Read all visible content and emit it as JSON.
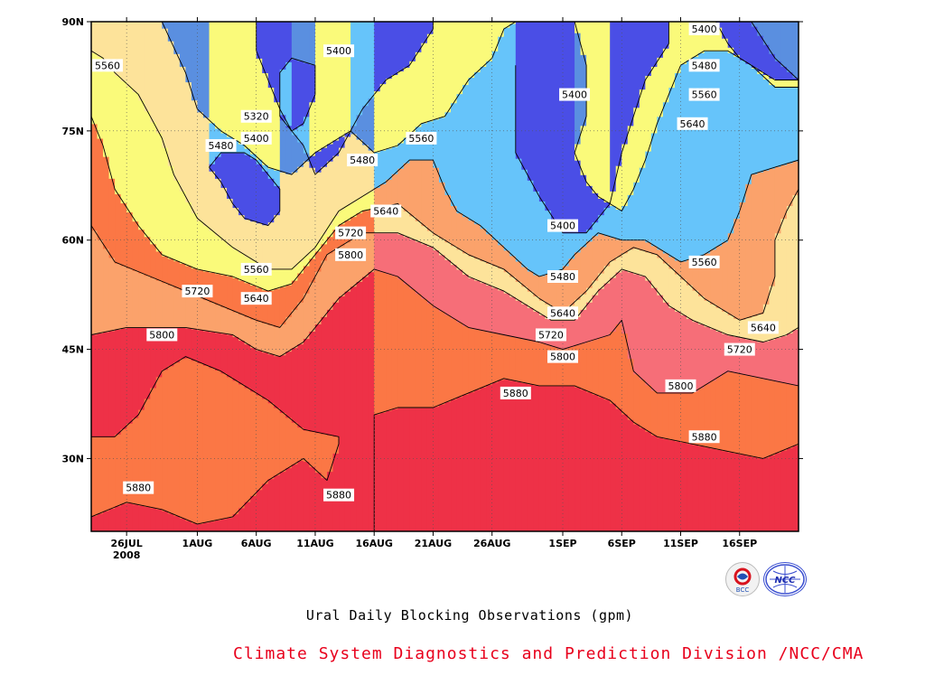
{
  "chart_data": {
    "type": "heatmap",
    "subtitle": "Ural Daily Blocking Observations (gpm)",
    "footer": "Climate System Diagnostics and Prediction Division /NCC/CMA",
    "x_ticks": [
      {
        "label": "26JUL",
        "sub": "2008",
        "day": 0
      },
      {
        "label": "1AUG",
        "day": 6
      },
      {
        "label": "6AUG",
        "day": 11
      },
      {
        "label": "11AUG",
        "day": 16
      },
      {
        "label": "16AUG",
        "day": 21
      },
      {
        "label": "21AUG",
        "day": 26
      },
      {
        "label": "26AUG",
        "day": 31
      },
      {
        "label": "1SEP",
        "day": 37
      },
      {
        "label": "6SEP",
        "day": 42
      },
      {
        "label": "11SEP",
        "day": 47
      },
      {
        "label": "16SEP",
        "day": 52
      }
    ],
    "y_ticks": [
      {
        "label": "30N",
        "lat": 30
      },
      {
        "label": "45N",
        "lat": 45
      },
      {
        "label": "60N",
        "lat": 60
      },
      {
        "label": "75N",
        "lat": 75
      },
      {
        "label": "90N",
        "lat": 90
      }
    ],
    "xlim": [
      -3,
      57
    ],
    "ylim": [
      20,
      90
    ],
    "contour_levels": [
      5320,
      5400,
      5480,
      5560,
      5640,
      5720,
      5800,
      5880
    ],
    "level_colors": [
      {
        "min": 0,
        "max": 5320,
        "color": "#4a4ee6"
      },
      {
        "min": 5320,
        "max": 5400,
        "color": "#5a8fe0"
      },
      {
        "min": 5400,
        "max": 5480,
        "color": "#66c4fa"
      },
      {
        "min": 5480,
        "max": 5560,
        "color": "#fafa7a"
      },
      {
        "min": 5560,
        "max": 5640,
        "color": "#fde39a"
      },
      {
        "min": 5640,
        "max": 5720,
        "color": "#fba26b"
      },
      {
        "min": 5720,
        "max": 5800,
        "color": "#fb7745"
      },
      {
        "min": 5800,
        "max": 5880,
        "color": "#f66e78"
      },
      {
        "min": 5880,
        "max": 9999,
        "color": "#ee3147"
      }
    ],
    "boundaries": [
      {
        "level": 5880,
        "points": [
          [
            -3,
            33
          ],
          [
            -1,
            33
          ],
          [
            1,
            36
          ],
          [
            3,
            42
          ],
          [
            5,
            44
          ],
          [
            8,
            42
          ],
          [
            12,
            38
          ],
          [
            15,
            34
          ],
          [
            18,
            33
          ],
          [
            18,
            32
          ],
          [
            17,
            27
          ],
          [
            15,
            30
          ],
          [
            12,
            27
          ],
          [
            9,
            22
          ],
          [
            6,
            21
          ],
          [
            3,
            23
          ],
          [
            0,
            24
          ],
          [
            -3,
            22
          ],
          null,
          [
            21,
            20
          ],
          [
            21,
            36
          ],
          [
            23,
            37
          ],
          [
            26,
            37
          ],
          [
            29,
            39
          ],
          [
            32,
            41
          ],
          [
            35,
            40
          ],
          [
            38,
            40
          ],
          [
            41,
            38
          ],
          [
            43,
            35
          ],
          [
            45,
            33
          ],
          [
            48,
            32
          ],
          [
            51,
            31
          ],
          [
            54,
            30
          ],
          [
            57,
            32
          ],
          [
            57,
            20
          ]
        ]
      },
      {
        "level": 5800,
        "points": [
          [
            -3,
            47
          ],
          [
            0,
            48
          ],
          [
            5,
            48
          ],
          [
            9,
            47
          ],
          [
            11,
            45
          ],
          [
            13,
            44
          ],
          [
            15,
            46
          ],
          [
            18,
            52
          ],
          [
            21,
            56
          ],
          [
            23,
            55
          ],
          [
            26,
            51
          ],
          [
            29,
            48
          ],
          [
            32,
            47
          ],
          [
            35,
            46
          ],
          [
            37,
            45
          ],
          [
            39,
            46
          ],
          [
            41,
            47
          ],
          [
            42,
            49
          ],
          [
            43,
            42
          ],
          [
            45,
            39
          ],
          [
            48,
            39
          ],
          [
            51,
            42
          ],
          [
            54,
            41
          ],
          [
            57,
            40
          ]
        ]
      },
      {
        "level": 5720,
        "points": [
          [
            -3,
            62
          ],
          [
            -1,
            57
          ],
          [
            2,
            55
          ],
          [
            5,
            53
          ],
          [
            8,
            51
          ],
          [
            11,
            49
          ],
          [
            13,
            48
          ],
          [
            15,
            52
          ],
          [
            17,
            58
          ],
          [
            20,
            61
          ],
          [
            23,
            61
          ],
          [
            26,
            59
          ],
          [
            29,
            55
          ],
          [
            32,
            53
          ],
          [
            34,
            51
          ],
          [
            36,
            49
          ],
          [
            38,
            49
          ],
          [
            40,
            53
          ],
          [
            42,
            56
          ],
          [
            44,
            55
          ],
          [
            46,
            51
          ],
          [
            48,
            49
          ],
          [
            51,
            47
          ],
          [
            54,
            46
          ],
          [
            56,
            47
          ],
          [
            57,
            48
          ]
        ]
      },
      {
        "level": 5640,
        "points": [
          [
            -3,
            77
          ],
          [
            -2,
            73
          ],
          [
            -1,
            67
          ],
          [
            1,
            62
          ],
          [
            3,
            58
          ],
          [
            6,
            56
          ],
          [
            9,
            55
          ],
          [
            12,
            53
          ],
          [
            14,
            54
          ],
          [
            16,
            58
          ],
          [
            18,
            62
          ],
          [
            20,
            64
          ],
          [
            23,
            65
          ],
          [
            26,
            61
          ],
          [
            29,
            58
          ],
          [
            32,
            56
          ],
          [
            35,
            52
          ],
          [
            37,
            50
          ],
          [
            39,
            53
          ],
          [
            41,
            57
          ],
          [
            43,
            59
          ],
          [
            45,
            58
          ],
          [
            47,
            55
          ],
          [
            49,
            52
          ],
          [
            52,
            49
          ],
          [
            54,
            50
          ],
          [
            55,
            55
          ],
          [
            55,
            60
          ],
          [
            56,
            64
          ],
          [
            57,
            67
          ]
        ]
      },
      {
        "level": 5560,
        "points": [
          [
            -3,
            86
          ],
          [
            -2,
            85
          ],
          [
            -1,
            83
          ],
          [
            1,
            80
          ],
          [
            2,
            77
          ],
          [
            3,
            74
          ],
          [
            4,
            69
          ],
          [
            6,
            63
          ],
          [
            9,
            59
          ],
          [
            12,
            56
          ],
          [
            14,
            56
          ],
          [
            16,
            59
          ],
          [
            18,
            64
          ],
          [
            20,
            66
          ],
          [
            22,
            68
          ],
          [
            24,
            71
          ],
          [
            26,
            71
          ],
          [
            27,
            67
          ],
          [
            28,
            64
          ],
          [
            30,
            62
          ],
          [
            32,
            59
          ],
          [
            34,
            56
          ],
          [
            35,
            55
          ],
          [
            37,
            56
          ],
          [
            38,
            58
          ],
          [
            40,
            61
          ],
          [
            42,
            60
          ],
          [
            44,
            60
          ],
          [
            46,
            58
          ],
          [
            47,
            57
          ],
          [
            49,
            58
          ],
          [
            51,
            60
          ],
          [
            52,
            64
          ],
          [
            53,
            69
          ],
          [
            55,
            70
          ],
          [
            57,
            71
          ]
        ]
      },
      {
        "level": 5480,
        "points": [
          [
            3,
            90
          ],
          [
            5,
            83
          ],
          [
            6,
            78
          ],
          [
            8,
            75
          ],
          [
            10,
            73
          ],
          [
            12,
            70
          ],
          [
            14,
            69
          ],
          [
            16,
            72
          ],
          [
            18,
            74
          ],
          [
            19,
            75
          ],
          [
            21,
            72
          ],
          [
            23,
            73
          ],
          [
            25,
            76
          ],
          [
            27,
            77
          ],
          [
            29,
            82
          ],
          [
            31,
            85
          ],
          [
            32,
            89
          ],
          [
            33,
            90
          ],
          null,
          [
            38,
            90
          ],
          [
            39,
            84
          ],
          [
            39,
            77
          ],
          [
            38,
            72
          ],
          [
            39,
            68
          ],
          [
            40,
            66
          ],
          [
            42,
            64
          ],
          [
            43,
            67
          ],
          [
            44,
            71
          ],
          [
            45,
            76
          ],
          [
            46,
            80
          ],
          [
            47,
            84
          ],
          [
            49,
            86
          ],
          [
            51,
            86
          ],
          [
            53,
            84
          ],
          [
            55,
            81
          ],
          [
            57,
            81
          ]
        ]
      },
      {
        "level": 5400,
        "points": [
          [
            11,
            90
          ],
          [
            11,
            86
          ],
          [
            12,
            82
          ],
          [
            13,
            78
          ],
          [
            14,
            75
          ],
          [
            15,
            73
          ],
          [
            16,
            69
          ],
          [
            18,
            72
          ],
          [
            20,
            78
          ],
          [
            22,
            82
          ],
          [
            24,
            84
          ],
          [
            26,
            89
          ],
          [
            26,
            90
          ],
          null,
          [
            7,
            70
          ],
          [
            8,
            68
          ],
          [
            9,
            65
          ],
          [
            10,
            63
          ],
          [
            12,
            62
          ],
          [
            13,
            64
          ],
          [
            13,
            67
          ],
          [
            12,
            69
          ],
          [
            11,
            71
          ],
          [
            10,
            72
          ],
          [
            8,
            72
          ],
          [
            7,
            70
          ],
          null,
          [
            33,
            84
          ],
          [
            33,
            78
          ],
          [
            33,
            72
          ],
          [
            35,
            66
          ],
          [
            37,
            61
          ],
          [
            39,
            61
          ],
          [
            41,
            65
          ],
          [
            42,
            72
          ],
          [
            43,
            77
          ],
          [
            44,
            82
          ],
          [
            46,
            87
          ],
          [
            46,
            90
          ],
          null,
          [
            50,
            90
          ],
          [
            51,
            87
          ],
          [
            52,
            85
          ],
          [
            53,
            84
          ],
          [
            55,
            82
          ],
          [
            57,
            82
          ]
        ]
      },
      {
        "level": 5320,
        "points": [
          [
            13,
            80
          ],
          [
            13,
            83
          ],
          [
            14,
            85
          ],
          [
            16,
            84
          ],
          [
            16,
            80
          ],
          [
            15,
            76
          ],
          [
            14,
            75
          ],
          [
            13,
            77
          ],
          [
            13,
            80
          ],
          null,
          [
            53,
            90
          ],
          [
            55,
            85
          ],
          [
            57,
            82
          ]
        ]
      }
    ],
    "labels": [
      {
        "text": "5560",
        "day": -2,
        "lat": 84
      },
      {
        "text": "5480",
        "day": 8,
        "lat": 73
      },
      {
        "text": "5400",
        "day": 11,
        "lat": 74
      },
      {
        "text": "5320",
        "day": 11,
        "lat": 77
      },
      {
        "text": "5400",
        "day": 18,
        "lat": 86
      },
      {
        "text": "5480",
        "day": 20,
        "lat": 71
      },
      {
        "text": "5560",
        "day": 25,
        "lat": 74
      },
      {
        "text": "5640",
        "day": 22,
        "lat": 64
      },
      {
        "text": "5720",
        "day": 19,
        "lat": 61
      },
      {
        "text": "5800",
        "day": 19,
        "lat": 58
      },
      {
        "text": "5560",
        "day": 11,
        "lat": 56
      },
      {
        "text": "5640",
        "day": 11,
        "lat": 52
      },
      {
        "text": "5720",
        "day": 6,
        "lat": 53
      },
      {
        "text": "5800",
        "day": 3,
        "lat": 47
      },
      {
        "text": "5880",
        "day": 1,
        "lat": 26
      },
      {
        "text": "5880",
        "day": 18,
        "lat": 25
      },
      {
        "text": "5880",
        "day": 33,
        "lat": 39
      },
      {
        "text": "5800",
        "day": 37,
        "lat": 44
      },
      {
        "text": "5720",
        "day": 36,
        "lat": 47
      },
      {
        "text": "5640",
        "day": 37,
        "lat": 50
      },
      {
        "text": "5480",
        "day": 37,
        "lat": 55
      },
      {
        "text": "5400",
        "day": 37,
        "lat": 62
      },
      {
        "text": "5400",
        "day": 38,
        "lat": 80
      },
      {
        "text": "5400",
        "day": 49,
        "lat": 90
      },
      {
        "text": "5480",
        "day": 49,
        "lat": 84
      },
      {
        "text": "5560",
        "day": 49,
        "lat": 80
      },
      {
        "text": "5640",
        "day": 48,
        "lat": 76
      },
      {
        "text": "5560",
        "day": 49,
        "lat": 57
      },
      {
        "text": "5640",
        "day": 54,
        "lat": 48
      },
      {
        "text": "5720",
        "day": 52,
        "lat": 45
      },
      {
        "text": "5800",
        "day": 47,
        "lat": 40
      },
      {
        "text": "5880",
        "day": 49,
        "lat": 33
      }
    ]
  },
  "logos": {
    "left": "BCC",
    "right": "NCC"
  }
}
